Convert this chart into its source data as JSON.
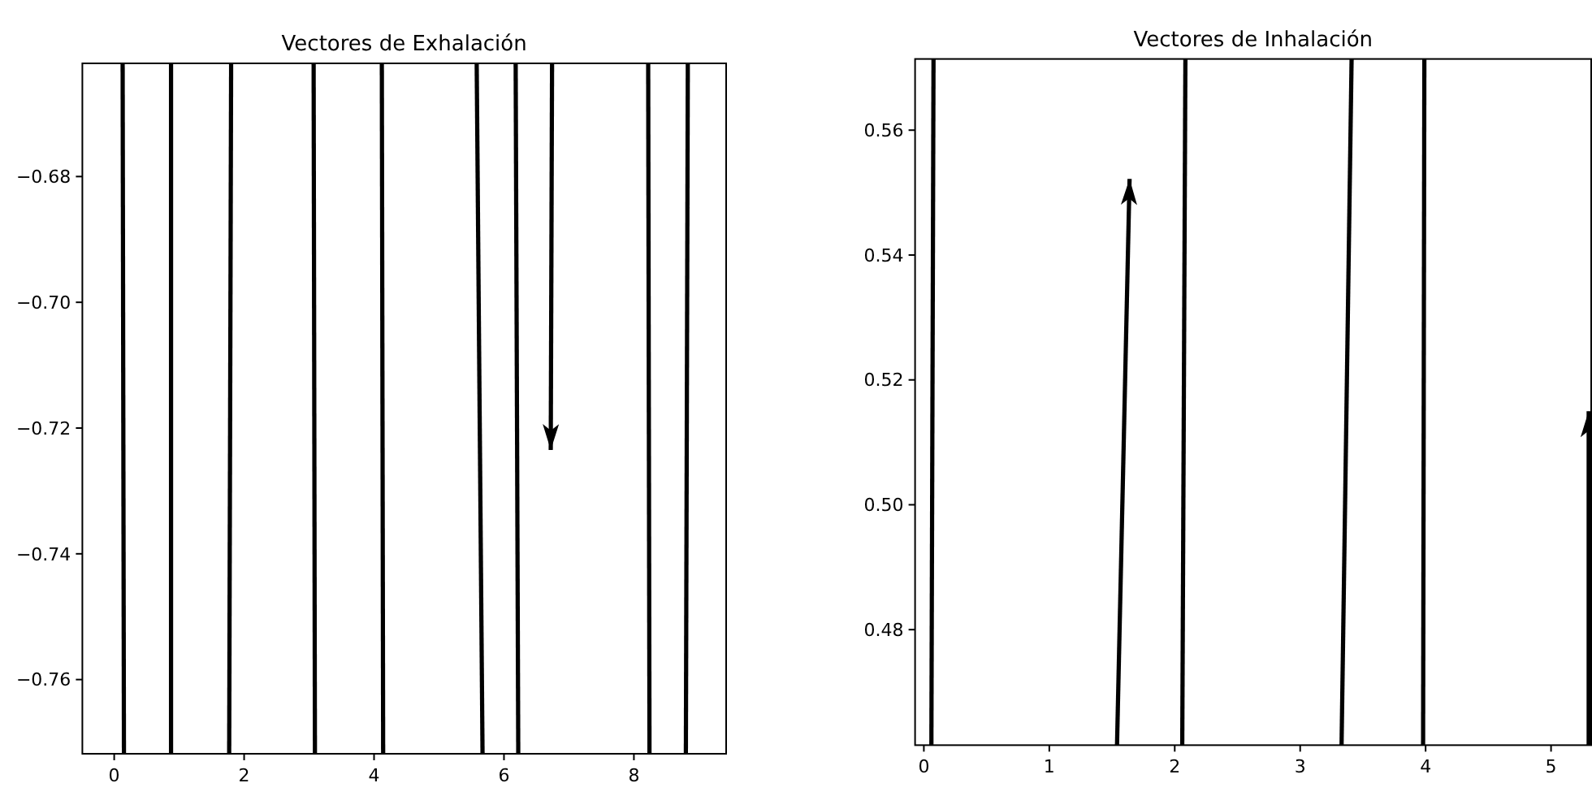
{
  "chart_data": [
    {
      "type": "line",
      "title": "Vectores de Exhalación",
      "xlim": [
        -0.49,
        9.42
      ],
      "ylim": [
        -0.7718,
        -0.662
      ],
      "xticks": [
        0,
        2,
        4,
        6,
        8
      ],
      "yticks": [
        {
          "value": -0.76,
          "label": "−0.76"
        },
        {
          "value": -0.74,
          "label": "−0.74"
        },
        {
          "value": -0.72,
          "label": "−0.72"
        },
        {
          "value": -0.7,
          "label": "−0.70"
        },
        {
          "value": -0.68,
          "label": "−0.68"
        }
      ],
      "series": [
        {
          "color": "#000000",
          "x": [
            0.13,
            0.15
          ],
          "values": [
            -0.662,
            -0.7718
          ]
        },
        {
          "color": "#000000",
          "x": [
            0.875,
            0.875
          ],
          "values": [
            -0.662,
            -0.7718
          ]
        },
        {
          "color": "#000000",
          "x": [
            1.8,
            1.77
          ],
          "values": [
            -0.662,
            -0.7718
          ]
        },
        {
          "color": "#000000",
          "x": [
            3.07,
            3.09
          ],
          "values": [
            -0.662,
            -0.7718
          ]
        },
        {
          "color": "#000000",
          "x": [
            4.12,
            4.14
          ],
          "values": [
            -0.662,
            -0.7718
          ]
        },
        {
          "color": "#000000",
          "x": [
            5.58,
            5.67
          ],
          "values": [
            -0.662,
            -0.7718
          ]
        },
        {
          "color": "#000000",
          "x": [
            6.18,
            6.22
          ],
          "values": [
            -0.662,
            -0.7718
          ]
        },
        {
          "color": "#000000",
          "x": [
            6.74,
            6.72
          ],
          "values": [
            -0.662,
            -0.7235
          ]
        },
        {
          "color": "#000000",
          "x": [
            8.22,
            8.24
          ],
          "values": [
            -0.662,
            -0.7718
          ]
        },
        {
          "color": "#000000",
          "x": [
            8.83,
            8.8
          ],
          "values": [
            -0.662,
            -0.7718
          ]
        }
      ]
    },
    {
      "type": "line",
      "title": "Vectores de Inhalación",
      "xlim": [
        -0.07,
        5.32
      ],
      "ylim": [
        0.4615,
        0.5714
      ],
      "xticks": [
        0,
        1,
        2,
        3,
        4,
        5
      ],
      "yticks": [
        {
          "value": 0.48,
          "label": "0.48"
        },
        {
          "value": 0.5,
          "label": "0.50"
        },
        {
          "value": 0.52,
          "label": "0.52"
        },
        {
          "value": 0.54,
          "label": "0.54"
        },
        {
          "value": 0.56,
          "label": "0.56"
        }
      ],
      "series": [
        {
          "color": "#000000",
          "x": [
            0.06,
            0.077
          ],
          "values": [
            0.4615,
            0.5714
          ]
        },
        {
          "color": "#000000",
          "x": [
            1.54,
            1.64
          ],
          "values": [
            0.4615,
            0.5522
          ]
        },
        {
          "color": "#000000",
          "x": [
            2.06,
            2.085
          ],
          "values": [
            0.4615,
            0.5714
          ]
        },
        {
          "color": "#000000",
          "x": [
            3.33,
            3.41
          ],
          "values": [
            0.4615,
            0.5714
          ]
        },
        {
          "color": "#000000",
          "x": [
            3.98,
            3.99
          ],
          "values": [
            0.4615,
            0.5714
          ]
        },
        {
          "color": "#000000",
          "x": [
            5.3,
            5.3
          ],
          "values": [
            0.4615,
            0.515
          ]
        }
      ]
    }
  ]
}
